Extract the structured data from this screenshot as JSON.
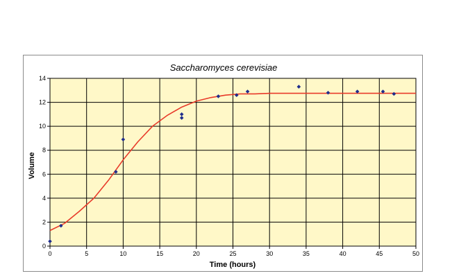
{
  "chart_data": {
    "type": "scatter",
    "title": "Saccharomyces cerevisiae",
    "xlabel": "Time (hours)",
    "ylabel": "Volume",
    "xlim": [
      0,
      50
    ],
    "ylim": [
      0,
      14
    ],
    "xticks": [
      0,
      5,
      10,
      15,
      20,
      25,
      30,
      35,
      40,
      45,
      50
    ],
    "yticks": [
      0,
      2,
      4,
      6,
      8,
      10,
      12,
      14
    ],
    "grid": true,
    "legend": "none",
    "plot_background": "#FFF8C8",
    "series": [
      {
        "kind": "points",
        "color": "#1F2D8C",
        "x": [
          0,
          1.5,
          9,
          10,
          18,
          18,
          23,
          25.5,
          27,
          34,
          38,
          42,
          45.5,
          47
        ],
        "y": [
          0.4,
          1.7,
          6.2,
          8.9,
          11.0,
          10.7,
          12.5,
          12.6,
          12.9,
          13.3,
          12.8,
          12.9,
          12.9,
          12.7
        ]
      },
      {
        "kind": "fitted-curve",
        "color": "#E83A2A",
        "x": [
          0,
          2,
          4,
          6,
          8,
          10,
          12,
          14,
          16,
          18,
          20,
          22,
          24,
          26,
          28,
          30,
          35,
          40,
          45,
          50
        ],
        "y": [
          1.3,
          1.9,
          2.9,
          4.0,
          5.5,
          7.2,
          8.7,
          10.0,
          10.9,
          11.6,
          12.1,
          12.4,
          12.6,
          12.7,
          12.7,
          12.75,
          12.75,
          12.75,
          12.75,
          12.75
        ]
      }
    ]
  }
}
